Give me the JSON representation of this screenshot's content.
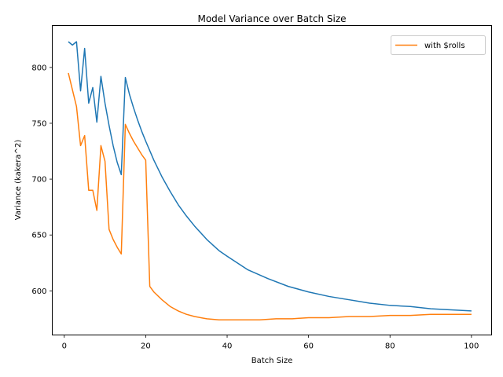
{
  "chart_data": {
    "type": "line",
    "title": "Model Variance over Batch Size",
    "xlabel": "Batch Size",
    "ylabel": "Variance (kakera^2)",
    "xlim": [
      -2.95,
      104.95
    ],
    "ylim": [
      560.5,
      837.5
    ],
    "xticks": [
      0,
      20,
      40,
      60,
      80,
      100
    ],
    "yticks": [
      600,
      650,
      700,
      750,
      800
    ],
    "grid": false,
    "legend_position": "upper right",
    "series": [
      {
        "name": "",
        "color": "#1f77b4",
        "x": [
          1,
          2,
          3,
          4,
          5,
          6,
          7,
          8,
          9,
          10,
          11,
          12,
          13,
          14,
          15,
          16,
          17,
          18,
          19,
          20,
          22,
          24,
          26,
          28,
          30,
          32,
          35,
          38,
          40,
          45,
          50,
          55,
          60,
          65,
          70,
          75,
          80,
          85,
          90,
          95,
          100
        ],
        "y": [
          823,
          820,
          823,
          779,
          817,
          768,
          782,
          751,
          792,
          768,
          748,
          730,
          715,
          704,
          791,
          776,
          764,
          753,
          743,
          734,
          717,
          702,
          689,
          677,
          667,
          658,
          646,
          636,
          631,
          619,
          611,
          604,
          599,
          595,
          592,
          589,
          587,
          586,
          584,
          583,
          582
        ]
      },
      {
        "name": "with $rolls",
        "color": "#ff7f0e",
        "x": [
          1,
          2,
          3,
          4,
          5,
          6,
          7,
          8,
          9,
          10,
          11,
          12,
          13,
          14,
          15,
          16,
          17,
          18,
          19,
          20,
          21,
          22,
          24,
          26,
          28,
          30,
          32,
          35,
          38,
          40,
          44,
          48,
          52,
          56,
          60,
          65,
          70,
          75,
          80,
          85,
          90,
          95,
          100
        ],
        "y": [
          795,
          780,
          765,
          730,
          739,
          690,
          690,
          672,
          730,
          716,
          655,
          646,
          639,
          633,
          749,
          741,
          734,
          728,
          722,
          717,
          604,
          599,
          592,
          586,
          582,
          579,
          577,
          575,
          574,
          574,
          574,
          574,
          575,
          575,
          576,
          576,
          577,
          577,
          578,
          578,
          579,
          579,
          579
        ]
      }
    ]
  }
}
